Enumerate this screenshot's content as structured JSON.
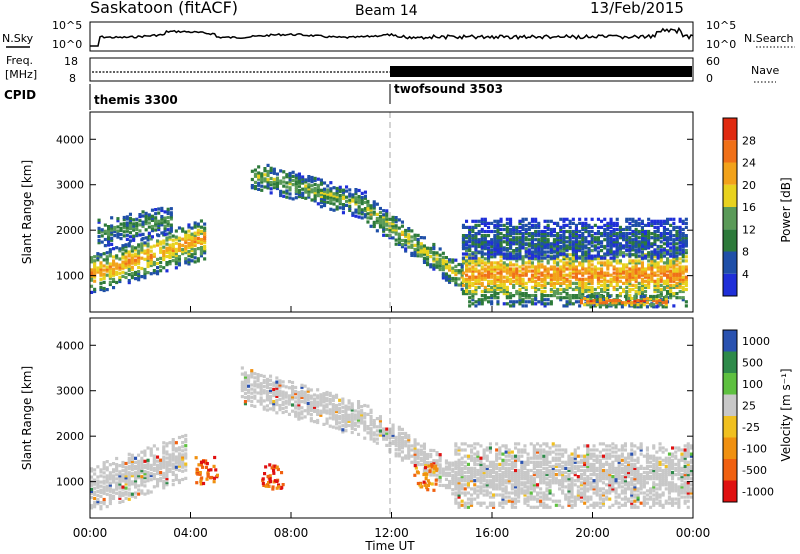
{
  "header": {
    "title": "Saskatoon (fitACF)",
    "beam": "Beam 14",
    "date": "13/Feb/2015"
  },
  "top_panels": {
    "nsky_label": "N.Sky",
    "nsearch_label": "N.Search",
    "noise_ticks": [
      "10^5",
      "10^0"
    ],
    "freq_label": "Freq.",
    "freq_unit": "[MHz]",
    "freq_ticks": [
      "18",
      "8"
    ],
    "nave_label": "Nave",
    "nave_ticks": [
      "60",
      "0"
    ],
    "cpid_label": "CPID",
    "cpid_segments": [
      {
        "name": "themis 3300",
        "start_hour": 0
      },
      {
        "name": "twofsound 3503",
        "start_hour": 12
      }
    ]
  },
  "xaxis": {
    "label": "Time UT",
    "ticks": [
      "00:00",
      "04:00",
      "08:00",
      "12:00",
      "16:00",
      "20:00",
      "00:00"
    ]
  },
  "colors": {
    "power": [
      "#1f2fd8",
      "#1f4fa8",
      "#2d7a3a",
      "#5a9a58",
      "#e8d21e",
      "#f2a21a",
      "#f07018",
      "#e02a10"
    ],
    "velocity": [
      "#e01010",
      "#f06010",
      "#f09010",
      "#f0c020",
      "#c8c8c8",
      "#5ec040",
      "#2e8a4a",
      "#2a52b0"
    ]
  },
  "chart_data": [
    {
      "type": "heatmap",
      "panel": "power",
      "ylabel": "Slant Range [km]",
      "y_ticks": [
        "1000",
        "2000",
        "3000",
        "4000"
      ],
      "ylim": [
        200,
        4600
      ],
      "xlim_hours": [
        0,
        24
      ],
      "colorbar_label": "Power [dB]",
      "colorbar_ticks": [
        "4",
        "8",
        "12",
        "16",
        "20",
        "24",
        "28"
      ],
      "bands": [
        {
          "start_hour": 0.0,
          "end_hour": 4.6,
          "center_km": 1000,
          "rise_km": 800,
          "width_km": 450,
          "level": 0.75
        },
        {
          "start_hour": 0.3,
          "end_hour": 3.2,
          "center_km": 1900,
          "rise_km": 300,
          "width_km": 300,
          "level": 0.35
        },
        {
          "start_hour": 6.4,
          "end_hour": 11.0,
          "center_km": 3200,
          "rise_km": -700,
          "width_km": 300,
          "level": 0.45
        },
        {
          "start_hour": 11.0,
          "end_hour": 14.8,
          "center_km": 2400,
          "rise_km": -1500,
          "width_km": 300,
          "level": 0.55
        },
        {
          "start_hour": 14.8,
          "end_hour": 23.8,
          "center_km": 1000,
          "rise_km": 0,
          "width_km": 700,
          "level": 0.8
        },
        {
          "start_hour": 14.8,
          "end_hour": 23.8,
          "center_km": 1800,
          "rise_km": 0,
          "width_km": 450,
          "level": 0.2
        },
        {
          "start_hour": 19.5,
          "end_hour": 23.0,
          "center_km": 400,
          "rise_km": 0,
          "width_km": 120,
          "level": 1.0
        }
      ]
    },
    {
      "type": "heatmap",
      "panel": "velocity",
      "ylabel": "Slant Range [km]",
      "y_ticks": [
        "1000",
        "2000",
        "3000",
        "4000"
      ],
      "ylim": [
        200,
        4600
      ],
      "xlim_hours": [
        0,
        24
      ],
      "colorbar_label": "Velocity [m s⁻¹]",
      "colorbar_ticks": [
        "-1000",
        "-500",
        "-100",
        "-25",
        "25",
        "100",
        "500",
        "1000"
      ],
      "bands": [
        {
          "start_hour": 0.0,
          "end_hour": 3.8,
          "center_km": 800,
          "rise_km": 700,
          "width_km": 500,
          "level": 0.5
        },
        {
          "start_hour": 6.0,
          "end_hour": 11.0,
          "center_km": 3100,
          "rise_km": -800,
          "width_km": 400,
          "level": 0.5
        },
        {
          "start_hour": 11.0,
          "end_hour": 14.5,
          "center_km": 2300,
          "rise_km": -1300,
          "width_km": 350,
          "level": 0.5
        },
        {
          "start_hour": 14.5,
          "end_hour": 24.0,
          "center_km": 1100,
          "rise_km": 0,
          "width_km": 700,
          "level": 0.5
        }
      ],
      "patches": [
        {
          "hour": 4.6,
          "km": 1200,
          "level": 0.15
        },
        {
          "hour": 7.2,
          "km": 1050,
          "level": 0.1
        },
        {
          "hour": 13.3,
          "km": 1050,
          "level": 0.25
        }
      ]
    }
  ]
}
